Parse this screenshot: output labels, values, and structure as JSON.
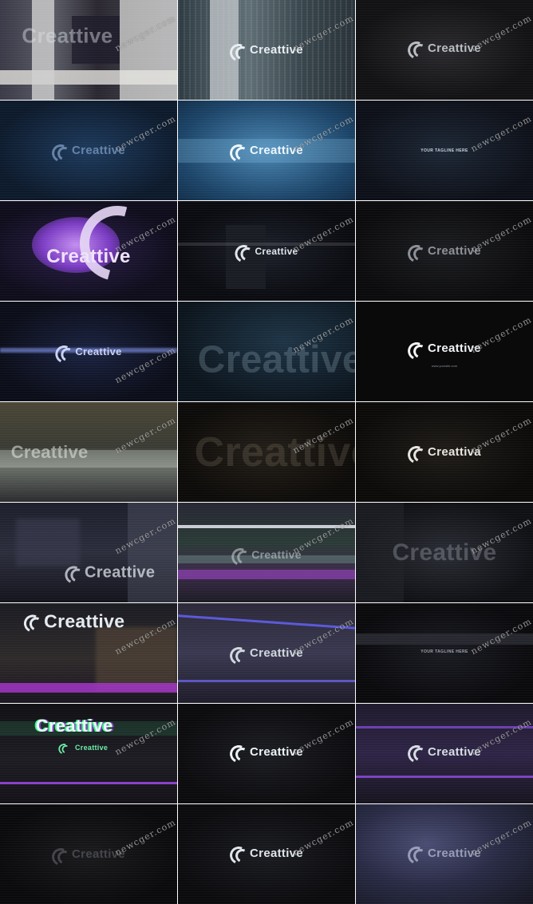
{
  "brand": "Creattive",
  "tagline": "YOUR TAGLINE HERE",
  "website": "www.yoursite.com",
  "watermark": "newcger.com",
  "frames": [
    {
      "label": "Creattive"
    },
    {
      "label": "Creattive"
    },
    {
      "label": "Creattive"
    },
    {
      "label": "Creattive"
    },
    {
      "label": "Creattive"
    },
    {
      "label": "YOUR TAGLINE HERE"
    },
    {
      "label": "Creattive"
    },
    {
      "label": "Creattive"
    },
    {
      "label": "Creattive"
    },
    {
      "label": "Creattive"
    },
    {
      "label": "Creattive"
    },
    {
      "label": "Creattive"
    },
    {
      "label": "Creattive"
    },
    {
      "label": "Creattive"
    },
    {
      "label": "Creattiva"
    },
    {
      "label": "Creattive"
    },
    {
      "label": "Creattive"
    },
    {
      "label": "Creattive"
    },
    {
      "label": "Creattive"
    },
    {
      "label": "Creattive"
    },
    {
      "label": "YOUR TAGLINE HERE"
    },
    {
      "label": "Creattive"
    },
    {
      "label": "Creattive"
    },
    {
      "label": "Creattive"
    },
    {
      "label": "Creattive"
    },
    {
      "label": "Creattive"
    },
    {
      "label": "Creattive"
    }
  ],
  "colors": {
    "background": "#0c0d12",
    "logo": "#d9e4ea",
    "accent_purple": "#a24fd6",
    "accent_blue": "#2c4f7c",
    "separator": "#ffffff"
  }
}
